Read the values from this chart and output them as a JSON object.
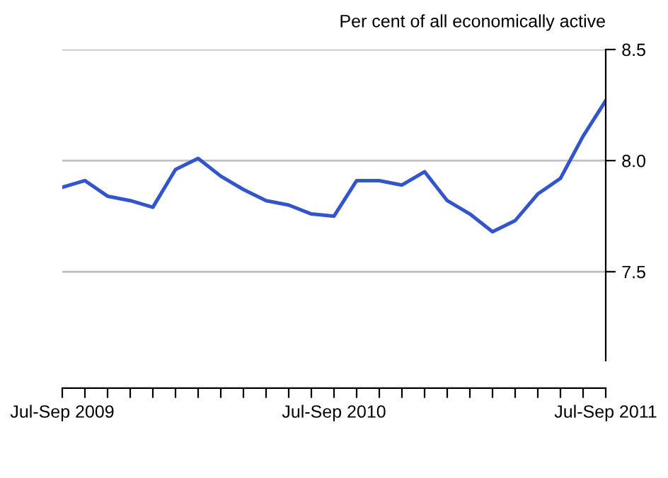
{
  "chart_data": {
    "type": "line",
    "ylabel": "Per cent of all economically active",
    "categories": [
      "Jul-Sep 2009",
      null,
      null,
      null,
      null,
      null,
      null,
      null,
      null,
      null,
      null,
      null,
      "Jul-Sep 2010",
      null,
      null,
      null,
      null,
      null,
      null,
      null,
      null,
      null,
      null,
      null,
      "Jul-Sep 2011"
    ],
    "series": [
      {
        "color": "#3355cc",
        "values": [
          7.88,
          7.91,
          7.84,
          7.82,
          7.79,
          7.96,
          8.01,
          7.93,
          7.87,
          7.82,
          7.8,
          7.76,
          7.75,
          7.91,
          7.91,
          7.89,
          7.95,
          7.82,
          7.76,
          7.68,
          7.73,
          7.85,
          7.92,
          8.11,
          8.27
        ]
      }
    ],
    "ylim": [
      7.1,
      8.5
    ],
    "yticks": [
      7.5,
      {
        "value": 8.0,
        "label": "8.0"
      },
      8.5
    ],
    "grid": "y",
    "marker": "none",
    "line_style": "solid"
  }
}
